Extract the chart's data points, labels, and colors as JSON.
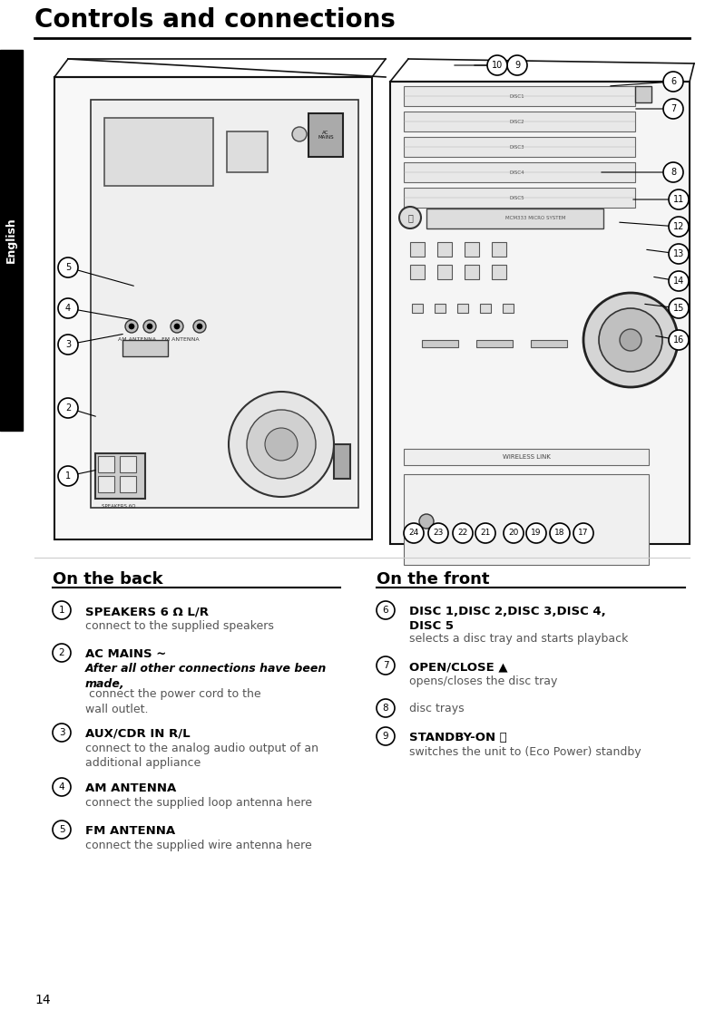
{
  "title": "Controls and connections",
  "page_number": "14",
  "sidebar_text": "English",
  "section_left_title": "On the back",
  "section_right_title": "On the front",
  "back_items": [
    {
      "num": "1",
      "bold": "SPEAKERS 6 Ω L/R",
      "normal": "connect to the supplied speakers",
      "special": false
    },
    {
      "num": "2",
      "bold": "AC MAINS ~",
      "italic_bold": "After all other connections have been made,",
      "normal": " connect the power cord to the wall outlet.",
      "special": true
    },
    {
      "num": "3",
      "bold": "AUX/CDR IN R/L",
      "normal": "connect to the analog audio output of an additional appliance",
      "special": false,
      "two_line": true
    },
    {
      "num": "4",
      "bold": "AM ANTENNA",
      "normal": "connect the supplied loop antenna here",
      "special": false
    },
    {
      "num": "5",
      "bold": "FM ANTENNA",
      "normal": "connect the supplied wire antenna here",
      "special": false
    }
  ],
  "front_items": [
    {
      "num": "6",
      "bold": "DISC 1,DISC 2,DISC 3,DISC 4,\nDISC 5",
      "normal": "selects a disc tray and starts playback",
      "special": false,
      "two_line_bold": true
    },
    {
      "num": "7",
      "bold": "OPEN/CLOSE ▲",
      "normal": "opens/closes the disc tray",
      "special": false
    },
    {
      "num": "8",
      "bold": "",
      "normal": "disc trays",
      "special": false,
      "no_bold": true
    },
    {
      "num": "9",
      "bold": "STANDBY-ON ⏻",
      "normal": "switches the unit to (Eco Power) standby",
      "special": false
    }
  ],
  "bg_color": "#ffffff",
  "text_color": "#000000"
}
